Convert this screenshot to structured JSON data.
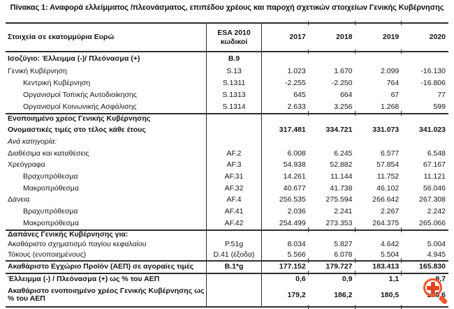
{
  "page": {
    "title": "Πίνακας 1: Αναφορά ελλείμματος /πλεονάσματος, επιπέδου χρέους και παροχή σχετικών στοιχείων Γενικής Κυβέρνησης"
  },
  "colors": {
    "text": "#141414",
    "rule": "#2e2e2e",
    "accent_orange": "#f1572b",
    "background": "#ffffff"
  },
  "overlay": {
    "icon": "zoom-in-magnifier-icon"
  },
  "table": {
    "header": {
      "label": "Στοιχεία σε εκατομμύρια Ευρώ",
      "code_line1": "ESA 2010",
      "code_line2": "κωδικοί",
      "years": [
        "2017",
        "2018",
        "2019",
        "2020"
      ]
    },
    "rows": [
      {
        "label": "Ισοζύγιο: Έλλειμμα (-)/ Πλεόνασμα (+)",
        "code": "B.9",
        "values": [
          "",
          "",
          "",
          ""
        ],
        "bold": true,
        "italic": false,
        "indent": 0,
        "section": false
      },
      {
        "label": "Γενική Κυβέρνηση",
        "code": "S.13",
        "values": [
          "1.023",
          "1.670",
          "2.099",
          "-16.130"
        ],
        "bold": false,
        "italic": false,
        "indent": 0,
        "section": false
      },
      {
        "label": "Κεντρική Κυβέρνηση",
        "code": "S.1311",
        "values": [
          "-2.255",
          "-2.250",
          "764",
          "-16.806"
        ],
        "bold": false,
        "italic": false,
        "indent": 1,
        "section": false
      },
      {
        "label": "Οργανισμοί Τοπικής Αυτοδιοίκησης",
        "code": "S.1313",
        "values": [
          "645",
          "664",
          "67",
          "77"
        ],
        "bold": false,
        "italic": false,
        "indent": 1,
        "section": false
      },
      {
        "label": "Οργανισμοί Κοινωνικής Ασφάλισης",
        "code": "S.1314",
        "values": [
          "2.633",
          "3.256",
          "1.268",
          "599"
        ],
        "bold": false,
        "italic": false,
        "indent": 1,
        "section": false
      },
      {
        "label": "Ενοποιημένο χρέος Γενικής Κυβέρνησης",
        "code": "",
        "values": [
          "",
          "",
          "",
          ""
        ],
        "bold": true,
        "italic": false,
        "indent": 0,
        "section": true
      },
      {
        "label": "Ονομαστικές τιμές στο τέλος κάθε έτους",
        "code": "",
        "values": [
          "317.481",
          "334.721",
          "331.073",
          "341.023"
        ],
        "bold": true,
        "italic": false,
        "indent": 0,
        "section": false
      },
      {
        "label": "Ανά κατηγορία:",
        "code": "",
        "values": [
          "",
          "",
          "",
          ""
        ],
        "bold": false,
        "italic": true,
        "indent": 0,
        "section": false
      },
      {
        "label": "Διαθέσιμα και καταθέσεις",
        "code": "AF.2",
        "values": [
          "6.008",
          "6.245",
          "6.577",
          "6.548"
        ],
        "bold": false,
        "italic": false,
        "indent": 0,
        "section": false
      },
      {
        "label": "Χρεόγραφα",
        "code": "AF.3",
        "values": [
          "54.938",
          "52.882",
          "57.854",
          "67.167"
        ],
        "bold": false,
        "italic": false,
        "indent": 0,
        "section": false
      },
      {
        "label": "Βραχυπρόθεσμα",
        "code": "AF.31",
        "values": [
          "14.261",
          "11.144",
          "11.752",
          "11.121"
        ],
        "bold": false,
        "italic": false,
        "indent": 1,
        "section": false
      },
      {
        "label": "Μακροπρόθεσμα",
        "code": "AF.32",
        "values": [
          "40.677",
          "41.738",
          "46.102",
          "56.046"
        ],
        "bold": false,
        "italic": false,
        "indent": 1,
        "section": false
      },
      {
        "label": "Δάνεια",
        "code": "AF.4",
        "values": [
          "256.535",
          "275.594",
          "266.642",
          "267.308"
        ],
        "bold": false,
        "italic": false,
        "indent": 0,
        "section": false
      },
      {
        "label": "Βραχυπρόθεσμα",
        "code": "AF.41",
        "values": [
          "2.036",
          "2.241",
          "2.267",
          "2.242"
        ],
        "bold": false,
        "italic": false,
        "indent": 1,
        "section": false
      },
      {
        "label": "Μακροπρόθεσμα",
        "code": "AF.42",
        "values": [
          "254.499",
          "273.353",
          "264.375",
          "265.066"
        ],
        "bold": false,
        "italic": false,
        "indent": 1,
        "section": false
      },
      {
        "label": "Δαπάνες Γενικής Κυβέρνησης για:",
        "code": "",
        "values": [
          "",
          "",
          "",
          ""
        ],
        "bold": true,
        "italic": false,
        "indent": 0,
        "section": true
      },
      {
        "label": "Ακαθάριστο σχηματισμό παγίου κεφαλαίου",
        "code": "P.51g",
        "values": [
          "8.034",
          "5.827",
          "4.642",
          "5.004"
        ],
        "bold": false,
        "italic": false,
        "indent": 0,
        "section": false
      },
      {
        "label": "Τόκους (ενοποιημένους)",
        "code": "D.41 (έξοδα)",
        "values": [
          "5.566",
          "6.078",
          "5.504",
          "4.945"
        ],
        "bold": false,
        "italic": false,
        "indent": 0,
        "section": false
      },
      {
        "label": "Ακαθάριστο Εγχώριο Προϊόν (ΑΕΠ) σε αγοραίες τιμές",
        "code": "B.1*g",
        "values": [
          "177.152",
          "179.727",
          "183.413",
          "165.830"
        ],
        "bold": true,
        "italic": false,
        "indent": 0,
        "section": true
      },
      {
        "label": "Έλλειμμα (-) / Πλεόνασμα (+) ως % του ΑΕΠ",
        "code": "",
        "values": [
          "0,6",
          "0,9",
          "1,1",
          "-9,7"
        ],
        "bold": true,
        "italic": false,
        "indent": 0,
        "section": true
      },
      {
        "label": "Ακαθάριστο ενοποιημένο χρέος Γενικής Κυβέρνησης ως % του ΑΕΠ",
        "code": "",
        "values": [
          "179,2",
          "186,2",
          "180,5",
          "205,6"
        ],
        "bold": true,
        "italic": false,
        "indent": 0,
        "section": false
      }
    ]
  }
}
